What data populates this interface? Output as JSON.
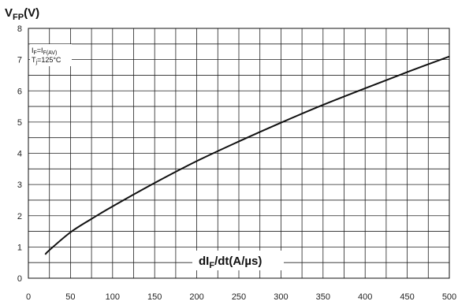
{
  "chart_data": {
    "type": "line",
    "ylabel": {
      "main": "V",
      "sub": "FP",
      "unit": "(V)"
    },
    "xlabel": {
      "pre": "dI",
      "sub": "F",
      "post": "/dt(A/µs)"
    },
    "conditions": [
      {
        "main": "I",
        "sub1": "F",
        "eq": "=I",
        "sub2": "F(AV)"
      },
      {
        "main": "T",
        "sub1": "j",
        "eq": "=125°C",
        "sub2": ""
      }
    ],
    "xlim": [
      0,
      500
    ],
    "ylim": [
      0,
      8
    ],
    "x_ticks": [
      0,
      50,
      100,
      150,
      200,
      250,
      300,
      350,
      400,
      450,
      500
    ],
    "y_ticks": [
      0,
      1,
      2,
      3,
      4,
      5,
      6,
      7,
      8
    ],
    "grid": true,
    "series": [
      {
        "x": [
          20,
          25,
          50,
          75,
          100,
          150,
          200,
          250,
          300,
          350,
          400,
          450,
          500
        ],
        "y": [
          0.76,
          0.9,
          1.47,
          1.9,
          2.3,
          3.05,
          3.75,
          4.38,
          4.98,
          5.55,
          6.08,
          6.6,
          7.1
        ]
      }
    ]
  }
}
